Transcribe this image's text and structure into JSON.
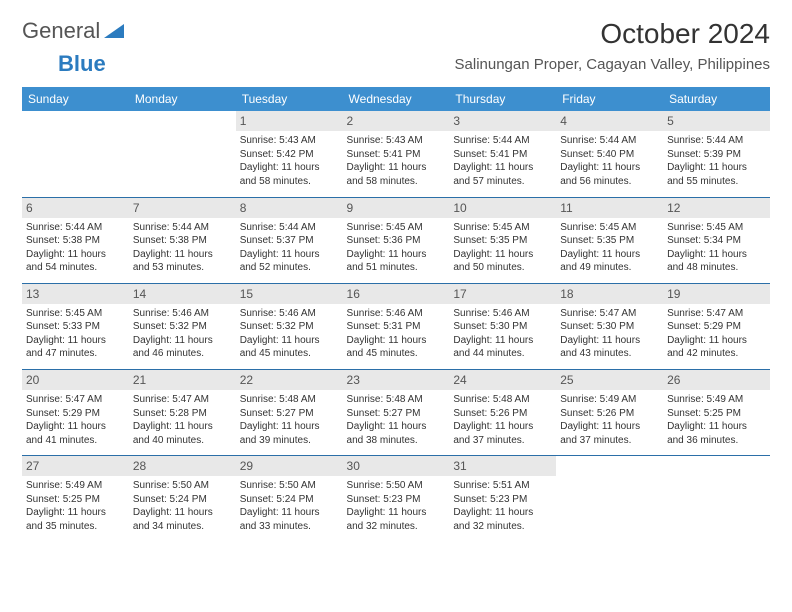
{
  "brand": {
    "part1": "General",
    "part2": "Blue"
  },
  "title": {
    "month": "October 2024",
    "location": "Salinungan Proper, Cagayan Valley, Philippines"
  },
  "colors": {
    "header_bg": "#3d8fcf",
    "header_text": "#ffffff",
    "week_border": "#2b6fa8",
    "daynum_bg": "#e8e8e8",
    "text": "#333333",
    "logo_blue": "#2b7bbf"
  },
  "typography": {
    "month_fontsize": 28,
    "location_fontsize": 15,
    "th_fontsize": 12,
    "cell_fontsize": 10,
    "daynum_fontsize": 12
  },
  "dayHeaders": [
    "Sunday",
    "Monday",
    "Tuesday",
    "Wednesday",
    "Thursday",
    "Friday",
    "Saturday"
  ],
  "weeks": [
    [
      null,
      null,
      {
        "n": "1",
        "sr": "Sunrise: 5:43 AM",
        "ss": "Sunset: 5:42 PM",
        "d1": "Daylight: 11 hours",
        "d2": "and 58 minutes."
      },
      {
        "n": "2",
        "sr": "Sunrise: 5:43 AM",
        "ss": "Sunset: 5:41 PM",
        "d1": "Daylight: 11 hours",
        "d2": "and 58 minutes."
      },
      {
        "n": "3",
        "sr": "Sunrise: 5:44 AM",
        "ss": "Sunset: 5:41 PM",
        "d1": "Daylight: 11 hours",
        "d2": "and 57 minutes."
      },
      {
        "n": "4",
        "sr": "Sunrise: 5:44 AM",
        "ss": "Sunset: 5:40 PM",
        "d1": "Daylight: 11 hours",
        "d2": "and 56 minutes."
      },
      {
        "n": "5",
        "sr": "Sunrise: 5:44 AM",
        "ss": "Sunset: 5:39 PM",
        "d1": "Daylight: 11 hours",
        "d2": "and 55 minutes."
      }
    ],
    [
      {
        "n": "6",
        "sr": "Sunrise: 5:44 AM",
        "ss": "Sunset: 5:38 PM",
        "d1": "Daylight: 11 hours",
        "d2": "and 54 minutes."
      },
      {
        "n": "7",
        "sr": "Sunrise: 5:44 AM",
        "ss": "Sunset: 5:38 PM",
        "d1": "Daylight: 11 hours",
        "d2": "and 53 minutes."
      },
      {
        "n": "8",
        "sr": "Sunrise: 5:44 AM",
        "ss": "Sunset: 5:37 PM",
        "d1": "Daylight: 11 hours",
        "d2": "and 52 minutes."
      },
      {
        "n": "9",
        "sr": "Sunrise: 5:45 AM",
        "ss": "Sunset: 5:36 PM",
        "d1": "Daylight: 11 hours",
        "d2": "and 51 minutes."
      },
      {
        "n": "10",
        "sr": "Sunrise: 5:45 AM",
        "ss": "Sunset: 5:35 PM",
        "d1": "Daylight: 11 hours",
        "d2": "and 50 minutes."
      },
      {
        "n": "11",
        "sr": "Sunrise: 5:45 AM",
        "ss": "Sunset: 5:35 PM",
        "d1": "Daylight: 11 hours",
        "d2": "and 49 minutes."
      },
      {
        "n": "12",
        "sr": "Sunrise: 5:45 AM",
        "ss": "Sunset: 5:34 PM",
        "d1": "Daylight: 11 hours",
        "d2": "and 48 minutes."
      }
    ],
    [
      {
        "n": "13",
        "sr": "Sunrise: 5:45 AM",
        "ss": "Sunset: 5:33 PM",
        "d1": "Daylight: 11 hours",
        "d2": "and 47 minutes."
      },
      {
        "n": "14",
        "sr": "Sunrise: 5:46 AM",
        "ss": "Sunset: 5:32 PM",
        "d1": "Daylight: 11 hours",
        "d2": "and 46 minutes."
      },
      {
        "n": "15",
        "sr": "Sunrise: 5:46 AM",
        "ss": "Sunset: 5:32 PM",
        "d1": "Daylight: 11 hours",
        "d2": "and 45 minutes."
      },
      {
        "n": "16",
        "sr": "Sunrise: 5:46 AM",
        "ss": "Sunset: 5:31 PM",
        "d1": "Daylight: 11 hours",
        "d2": "and 45 minutes."
      },
      {
        "n": "17",
        "sr": "Sunrise: 5:46 AM",
        "ss": "Sunset: 5:30 PM",
        "d1": "Daylight: 11 hours",
        "d2": "and 44 minutes."
      },
      {
        "n": "18",
        "sr": "Sunrise: 5:47 AM",
        "ss": "Sunset: 5:30 PM",
        "d1": "Daylight: 11 hours",
        "d2": "and 43 minutes."
      },
      {
        "n": "19",
        "sr": "Sunrise: 5:47 AM",
        "ss": "Sunset: 5:29 PM",
        "d1": "Daylight: 11 hours",
        "d2": "and 42 minutes."
      }
    ],
    [
      {
        "n": "20",
        "sr": "Sunrise: 5:47 AM",
        "ss": "Sunset: 5:29 PM",
        "d1": "Daylight: 11 hours",
        "d2": "and 41 minutes."
      },
      {
        "n": "21",
        "sr": "Sunrise: 5:47 AM",
        "ss": "Sunset: 5:28 PM",
        "d1": "Daylight: 11 hours",
        "d2": "and 40 minutes."
      },
      {
        "n": "22",
        "sr": "Sunrise: 5:48 AM",
        "ss": "Sunset: 5:27 PM",
        "d1": "Daylight: 11 hours",
        "d2": "and 39 minutes."
      },
      {
        "n": "23",
        "sr": "Sunrise: 5:48 AM",
        "ss": "Sunset: 5:27 PM",
        "d1": "Daylight: 11 hours",
        "d2": "and 38 minutes."
      },
      {
        "n": "24",
        "sr": "Sunrise: 5:48 AM",
        "ss": "Sunset: 5:26 PM",
        "d1": "Daylight: 11 hours",
        "d2": "and 37 minutes."
      },
      {
        "n": "25",
        "sr": "Sunrise: 5:49 AM",
        "ss": "Sunset: 5:26 PM",
        "d1": "Daylight: 11 hours",
        "d2": "and 37 minutes."
      },
      {
        "n": "26",
        "sr": "Sunrise: 5:49 AM",
        "ss": "Sunset: 5:25 PM",
        "d1": "Daylight: 11 hours",
        "d2": "and 36 minutes."
      }
    ],
    [
      {
        "n": "27",
        "sr": "Sunrise: 5:49 AM",
        "ss": "Sunset: 5:25 PM",
        "d1": "Daylight: 11 hours",
        "d2": "and 35 minutes."
      },
      {
        "n": "28",
        "sr": "Sunrise: 5:50 AM",
        "ss": "Sunset: 5:24 PM",
        "d1": "Daylight: 11 hours",
        "d2": "and 34 minutes."
      },
      {
        "n": "29",
        "sr": "Sunrise: 5:50 AM",
        "ss": "Sunset: 5:24 PM",
        "d1": "Daylight: 11 hours",
        "d2": "and 33 minutes."
      },
      {
        "n": "30",
        "sr": "Sunrise: 5:50 AM",
        "ss": "Sunset: 5:23 PM",
        "d1": "Daylight: 11 hours",
        "d2": "and 32 minutes."
      },
      {
        "n": "31",
        "sr": "Sunrise: 5:51 AM",
        "ss": "Sunset: 5:23 PM",
        "d1": "Daylight: 11 hours",
        "d2": "and 32 minutes."
      },
      null,
      null
    ]
  ]
}
